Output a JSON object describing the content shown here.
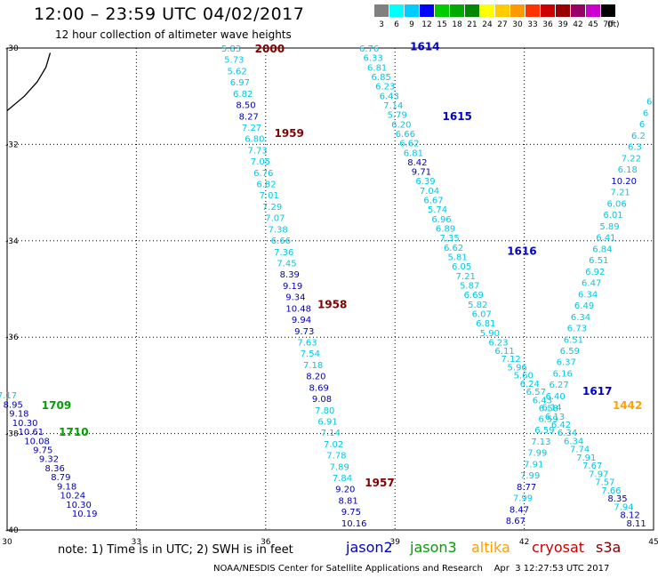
{
  "header": {
    "title": "12:00 – 23:59 UTC 04/02/2017",
    "subtitle": "12 hour collection of altimeter wave heights"
  },
  "legend": {
    "items": [
      {
        "label": "3",
        "color": "#808080"
      },
      {
        "label": "6",
        "color": "#00ffff"
      },
      {
        "label": "9",
        "color": "#00ccff"
      },
      {
        "label": "12",
        "color": "#0000ff"
      },
      {
        "label": "15",
        "color": "#00cc00"
      },
      {
        "label": "18",
        "color": "#00aa00"
      },
      {
        "label": "21",
        "color": "#008800"
      },
      {
        "label": "24",
        "color": "#ffff00"
      },
      {
        "label": "27",
        "color": "#ffcc00"
      },
      {
        "label": "30",
        "color": "#ff9900"
      },
      {
        "label": "33",
        "color": "#ff3300"
      },
      {
        "label": "36",
        "color": "#cc0000"
      },
      {
        "label": "39",
        "color": "#990000"
      },
      {
        "label": "42",
        "color": "#990066"
      },
      {
        "label": "45",
        "color": "#cc00cc"
      },
      {
        "label": "70",
        "color": "#000000"
      }
    ],
    "unit": "(ft)"
  },
  "map": {
    "lon_range": [
      30,
      45
    ],
    "lat_range": [
      -40,
      -30
    ],
    "x_ticks": [
      "30",
      "33",
      "36",
      "39",
      "42",
      "45"
    ],
    "y_ticks": [
      "-30",
      "-32",
      "-34",
      "-36",
      "-38",
      "-40"
    ],
    "colors": {
      "jason2": "#0000c8",
      "jason3": "#00a000",
      "altika": "#ffa000",
      "cryosat": "#c80000",
      "s3a": "#800000",
      "swh_low": "#00c8e6",
      "swh_mid": "#0000b4"
    },
    "coastline": [
      [
        30.0,
        -31.3
      ],
      [
        30.4,
        -31.0
      ],
      [
        30.7,
        -30.7
      ],
      [
        30.9,
        -30.4
      ],
      [
        31.0,
        -30.1
      ]
    ],
    "track_labels": [
      {
        "text": "2000",
        "sat": "s3a",
        "lon": 35.75,
        "lat": -30.0
      },
      {
        "text": "1959",
        "sat": "s3a",
        "lon": 36.2,
        "lat": -31.75
      },
      {
        "text": "1958",
        "sat": "s3a",
        "lon": 37.2,
        "lat": -35.3
      },
      {
        "text": "1957",
        "sat": "s3a",
        "lon": 38.3,
        "lat": -39.0
      },
      {
        "text": "1614",
        "sat": "jason2",
        "lon": 39.35,
        "lat": -29.95
      },
      {
        "text": "1615",
        "sat": "jason2",
        "lon": 40.1,
        "lat": -31.4
      },
      {
        "text": "1616",
        "sat": "jason2",
        "lon": 41.6,
        "lat": -34.2
      },
      {
        "text": "1617",
        "sat": "jason2",
        "lon": 43.35,
        "lat": -37.1
      },
      {
        "text": "1442",
        "sat": "altika",
        "lon": 44.05,
        "lat": -37.4
      },
      {
        "text": "1709",
        "sat": "jason3",
        "lon": 30.8,
        "lat": -37.4
      },
      {
        "text": "1710",
        "sat": "jason3",
        "lon": 31.2,
        "lat": -37.95
      }
    ],
    "tracks": [
      {
        "name": "s3a-track",
        "start": [
          35.2,
          -30.0
        ],
        "end": [
          38.05,
          -39.85
        ],
        "values": [
          "5.83",
          "5.73",
          "5.62",
          "6.97",
          "6.82",
          "8.50",
          "8.27",
          "7.27",
          "6.80",
          "7.73",
          "7.05",
          "6.76",
          "6.82",
          "7.01",
          "7.29",
          "7.07",
          "7.38",
          "6.66",
          "7.36",
          "7.45",
          "8.39",
          "9.19",
          "9.34",
          "10.48",
          "9.94",
          "9.73",
          "7.63",
          "7.54",
          "7.18",
          "8.20",
          "8.69",
          "9.08",
          "7.80",
          "6.91",
          "7.14",
          "7.02",
          "7.78",
          "7.89",
          "7.84",
          "9.20",
          "8.81",
          "9.75",
          "10.16"
        ]
      },
      {
        "name": "jason2-track-a",
        "start": [
          38.4,
          -30.0
        ],
        "end": [
          41.2,
          -35.9
        ],
        "values": [
          "6.76",
          "6.33",
          "6.81",
          "6.85",
          "6.23",
          "6.43",
          "7.14",
          "5.79",
          "6.20",
          "6.66",
          "6.62",
          "6.81",
          "8.42",
          "9.71",
          "6.39",
          "7.04",
          "6.67",
          "5.74",
          "6.96",
          "6.89",
          "7.35",
          "6.62",
          "5.81",
          "6.05",
          "7.21",
          "5.87",
          "6.69",
          "5.82",
          "6.07",
          "6.81",
          "5.90"
        ]
      },
      {
        "name": "jason2-track-b",
        "start": [
          41.4,
          -36.1
        ],
        "end": [
          44.6,
          -39.85
        ],
        "values": [
          "6.23",
          "6.11",
          "7.12",
          "5.96",
          "5.60",
          "6.24",
          "6.57",
          "6.43",
          "6.58",
          "6.13",
          "6.42",
          "6.34",
          "6.34",
          "7.74",
          "7.91",
          "7.67",
          "7.97",
          "7.57",
          "7.66",
          "8.35",
          "7.94",
          "8.12",
          "8.11"
        ]
      },
      {
        "name": "altika-track",
        "start": [
          41.8,
          -39.8
        ],
        "end": [
          44.9,
          -31.1
        ],
        "values": [
          "8.67",
          "8.47",
          "7.99",
          "8.77",
          "7.99",
          "7.91",
          "7.99",
          "7.13",
          "6.59",
          "6.59",
          "6.14",
          "6.40",
          "6.27",
          "6.16",
          "6.37",
          "6.59",
          "6.51",
          "6.73",
          "6.34",
          "6.49",
          "6.34",
          "6.47",
          "6.92",
          "6.51",
          "6.84",
          "6.41",
          "5.89",
          "6.01",
          "6.06",
          "7.21",
          "10.20",
          "6.18",
          "7.22",
          "6.3",
          "6.2",
          "6",
          "6",
          "6"
        ]
      },
      {
        "name": "jason3-track",
        "start": [
          30.0,
          -37.2
        ],
        "end": [
          31.8,
          -39.65
        ],
        "values": [
          "7.17",
          "8.95",
          "9.18",
          "10.30",
          "10.61",
          "10.08",
          "9.75",
          "9.32",
          "8.36",
          "8.79",
          "9.18",
          "10.24",
          "10.30",
          "10.19"
        ]
      }
    ]
  },
  "note": "note:  1) Time is in UTC;  2) SWH is in feet",
  "satellites": [
    {
      "label": "jason2",
      "color": "#0000c8"
    },
    {
      "label": "jason3",
      "color": "#00a000"
    },
    {
      "label": "altika",
      "color": "#ffa000"
    },
    {
      "label": "cryosat",
      "color": "#c80000"
    },
    {
      "label": "s3a",
      "color": "#800000"
    }
  ],
  "footer": "NOAA/NESDIS Center for Satellite Applications and Research    Apr  3 12:27:53 UTC 2017"
}
